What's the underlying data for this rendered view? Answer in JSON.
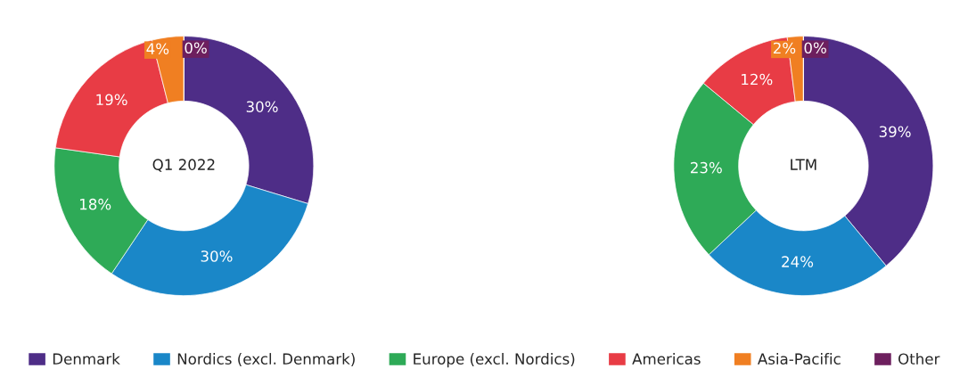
{
  "chart_data": [
    {
      "type": "donut",
      "title": "Q1 2022",
      "categories": [
        "Denmark",
        "Nordics (excl. Denmark)",
        "Europe (excl. Nordics)",
        "Americas",
        "Asia-Pacific",
        "Other"
      ],
      "values": [
        30,
        30,
        18,
        19,
        4,
        0
      ],
      "value_labels": [
        "30%",
        "30%",
        "18%",
        "19%",
        "4%",
        "0%"
      ],
      "colors": [
        "#4e2d87",
        "#1a87c8",
        "#2eaa57",
        "#e83c45",
        "#f07f22",
        "#6d1f5e"
      ],
      "legend": "bottom"
    },
    {
      "type": "donut",
      "title": "LTM",
      "categories": [
        null,
        null,
        null,
        null,
        null,
        null
      ],
      "values": [
        39,
        24,
        23,
        12,
        2,
        0
      ],
      "value_labels": [
        "39%",
        "24%",
        "23%",
        "12%",
        "2%",
        "0%"
      ],
      "colors": [
        "#4e2d87",
        "#1a87c8",
        "#2eaa57",
        "#e83c45",
        "#f07f22",
        "#6d1f5e"
      ]
    }
  ]
}
